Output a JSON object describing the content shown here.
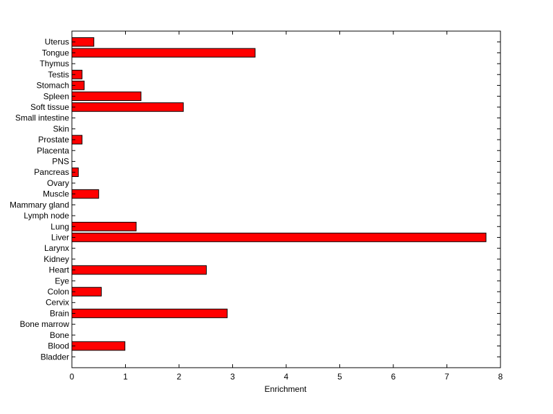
{
  "chart_data": {
    "type": "bar",
    "orientation": "horizontal",
    "title": "",
    "xlabel": "Enrichment",
    "ylabel": "",
    "xlim": [
      0,
      8
    ],
    "x_ticks": [
      0,
      1,
      2,
      3,
      4,
      5,
      6,
      7,
      8
    ],
    "grid": false,
    "legend": "none",
    "bar_color": "#ff0000",
    "bar_edge_color": "#000000",
    "categories": [
      "Bladder",
      "Blood",
      "Bone",
      "Bone marrow",
      "Brain",
      "Cervix",
      "Colon",
      "Eye",
      "Heart",
      "Kidney",
      "Larynx",
      "Liver",
      "Lung",
      "Lymph node",
      "Mammary gland",
      "Muscle",
      "Ovary",
      "Pancreas",
      "PNS",
      "Placenta",
      "Prostate",
      "Skin",
      "Small intestine",
      "Soft tissue",
      "Spleen",
      "Stomach",
      "Testis",
      "Thymus",
      "Tongue",
      "Uterus"
    ],
    "values": [
      0,
      0.99,
      0,
      0,
      2.9,
      0,
      0.55,
      0,
      2.51,
      0,
      0,
      7.73,
      1.2,
      0,
      0,
      0.5,
      0,
      0.12,
      0,
      0,
      0.19,
      0,
      0,
      2.08,
      1.29,
      0.23,
      0.19,
      0,
      3.42,
      0.41
    ]
  }
}
